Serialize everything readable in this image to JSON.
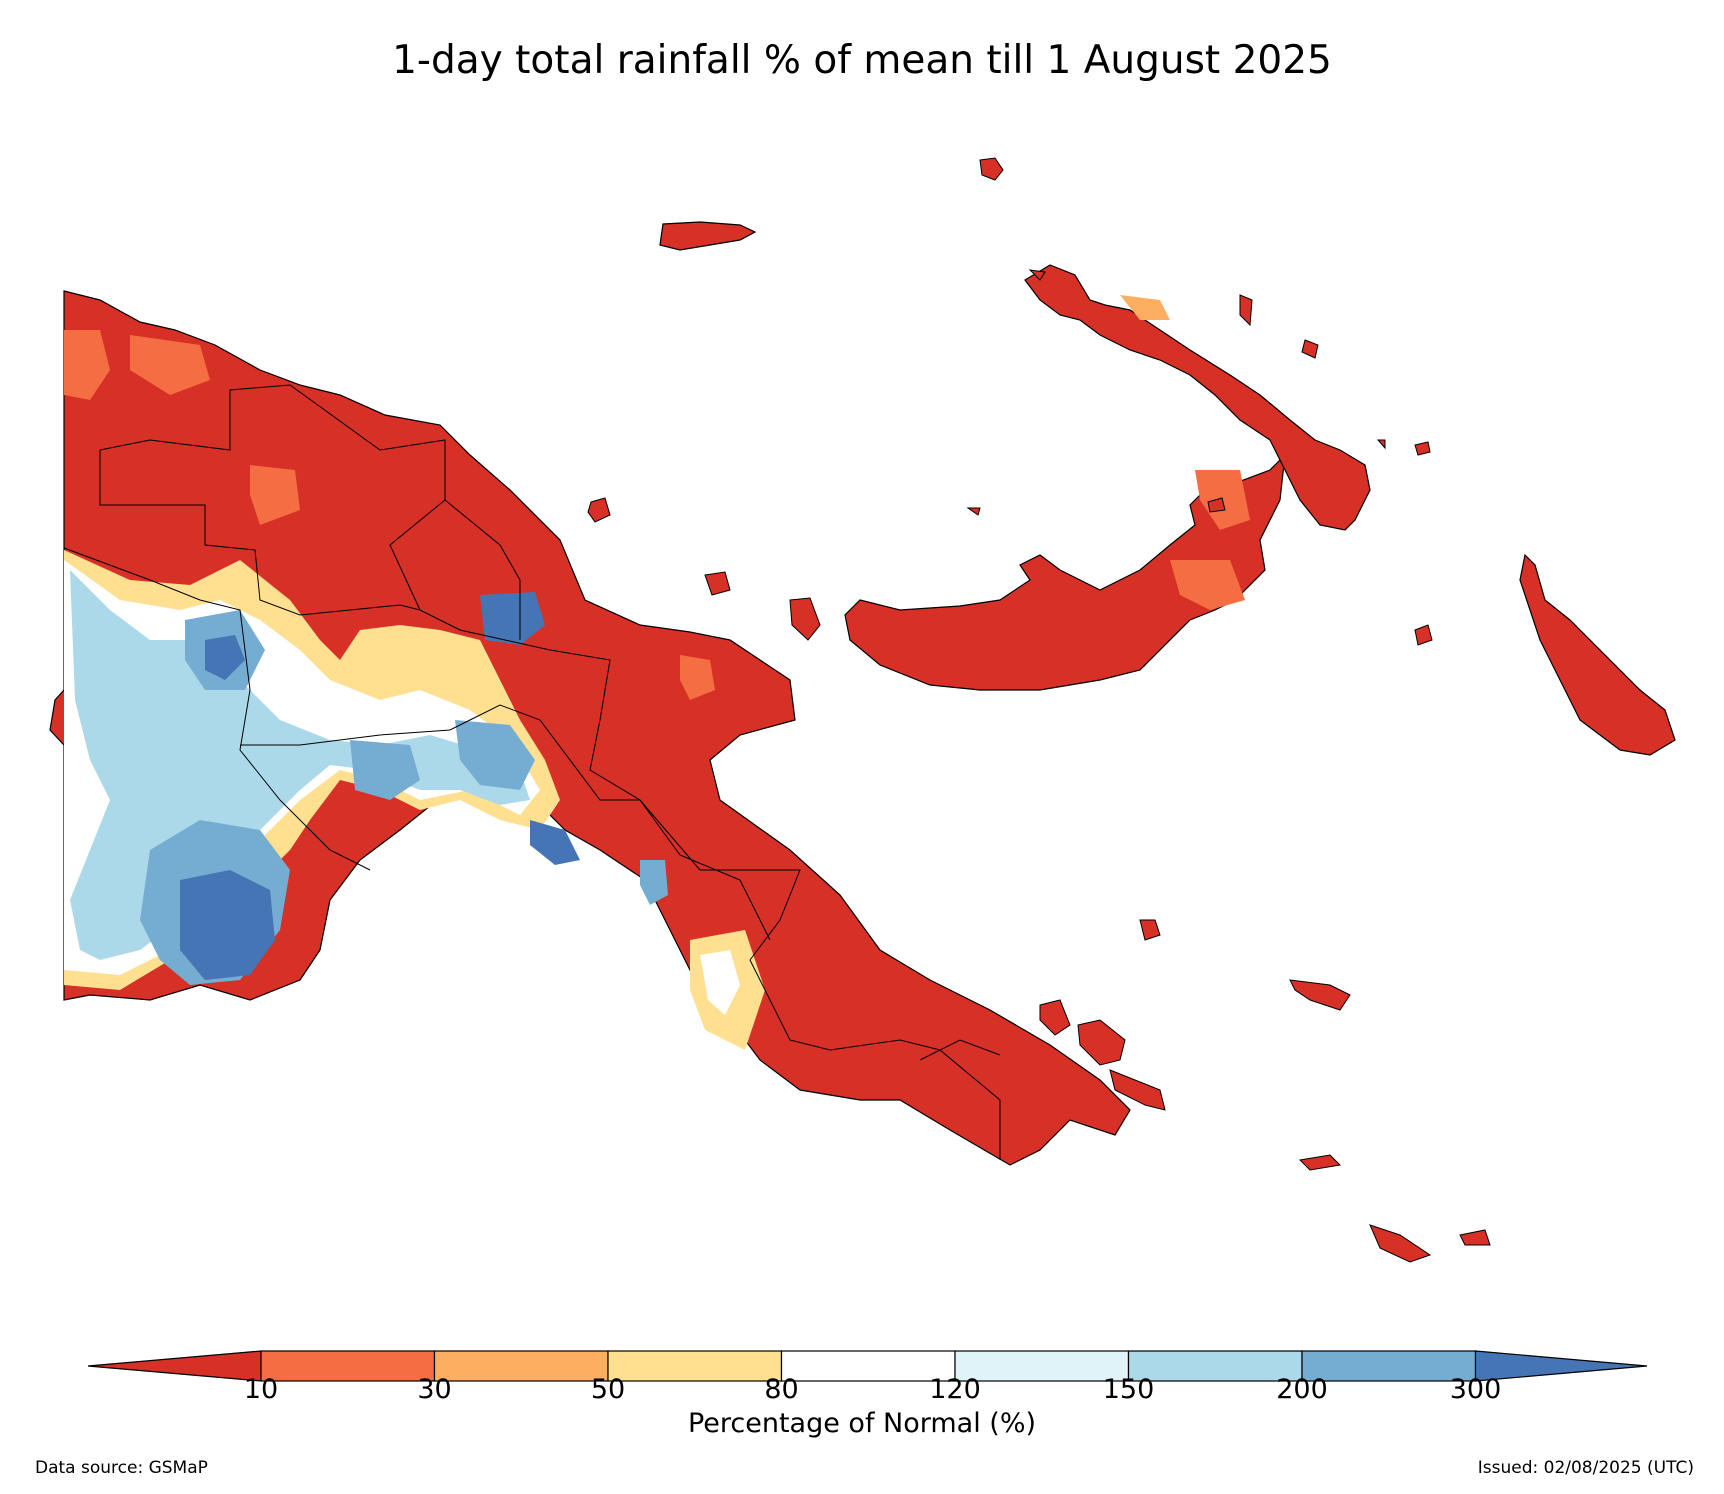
{
  "title": "1-day total rainfall % of mean till 1 August 2025",
  "colorbar": {
    "label": "Percentage of Normal (%)",
    "ticks": [
      "10",
      "30",
      "50",
      "80",
      "120",
      "150",
      "200",
      "300"
    ],
    "colors": {
      "under_10": "#d73027",
      "10_30": "#f46d43",
      "30_50": "#fdae61",
      "50_80": "#fee090",
      "80_120": "#ffffff",
      "120_150": "#e0f3f8",
      "150_200": "#abd9e9",
      "200_300": "#74add1",
      "over_300": "#4575b4"
    }
  },
  "footer": {
    "source": "Data source: GSMaP",
    "issued": "Issued: 02/08/2025 (UTC)"
  }
}
